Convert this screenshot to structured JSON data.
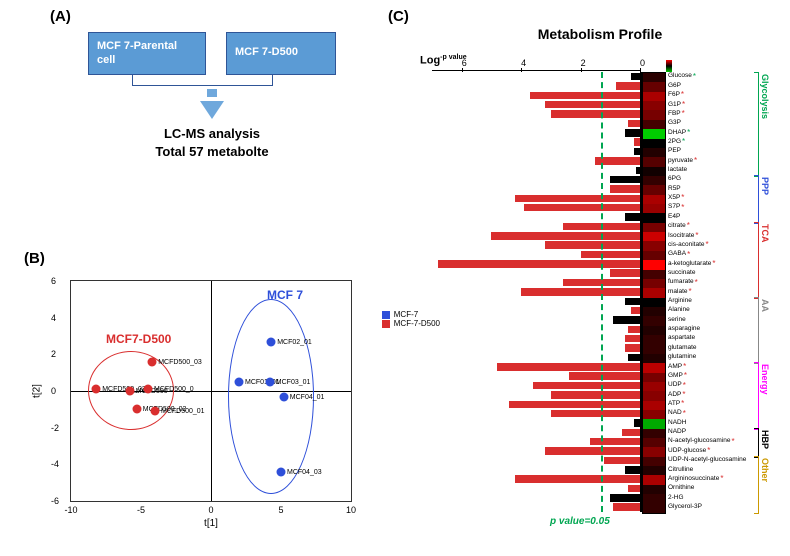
{
  "panelA": {
    "label": "(A)",
    "box1": "MCF 7-Parental\ncell",
    "box2": "MCF 7-D500",
    "caption1": "LC-MS analysis",
    "caption2": "Total 57 metabolte",
    "box_bg": "#5b9bd5",
    "box_border": "#2f5597",
    "arrow_color": "#6fa8dc"
  },
  "panelB": {
    "label": "(B)",
    "xlabel": "t[1]",
    "ylabel": "t[2]",
    "xlim": [
      -10,
      10
    ],
    "ylim": [
      -6,
      6
    ],
    "xticks": [
      -10,
      -5,
      0,
      5,
      10
    ],
    "yticks": [
      -6,
      -4,
      -2,
      0,
      2,
      4,
      6
    ],
    "group1": {
      "label": "MCF7-D500",
      "color": "#d92e2e"
    },
    "group2": {
      "label": "MCF 7",
      "color": "#2e4fd9"
    },
    "points_red": [
      {
        "x": -8.2,
        "y": 0.1,
        "label": "MCFD500_02"
      },
      {
        "x": -5.8,
        "y": 0.0,
        "label": "MCFD500"
      },
      {
        "x": -4.5,
        "y": 0.1,
        "label": "MCFD500_0"
      },
      {
        "x": -5.3,
        "y": -1.0,
        "label": "MCFD500_02"
      },
      {
        "x": -4.0,
        "y": -1.1,
        "label": "MCFD500_01"
      },
      {
        "x": -4.2,
        "y": 1.6,
        "label": "MCFD500_03"
      }
    ],
    "points_blue": [
      {
        "x": 2.0,
        "y": 0.5,
        "label": "MCF01_01"
      },
      {
        "x": 4.2,
        "y": 0.5,
        "label": "MCF03_01"
      },
      {
        "x": 4.3,
        "y": 2.7,
        "label": "MCF02_01"
      },
      {
        "x": 5.2,
        "y": -0.3,
        "label": "MCF04_01"
      },
      {
        "x": 5.0,
        "y": -4.4,
        "label": "MCF04_03"
      }
    ],
    "legend": [
      {
        "label": "MCF-7",
        "color": "#2e4fd9"
      },
      {
        "label": "MCF-7-D500",
        "color": "#d92e2e"
      }
    ]
  },
  "panelC": {
    "label": "(C)",
    "title": "Metabolism Profile",
    "xlabel": "Log",
    "xlabel_sup": "-p value",
    "xticks": [
      0,
      2,
      4,
      6
    ],
    "pval_threshold_x": 1.3,
    "pval_text": "p value=0.05",
    "pathways": [
      {
        "name": "Glycolysis",
        "color": "#00a651",
        "start": 0,
        "end": 11
      },
      {
        "name": "PPP",
        "color": "#2e4fd9",
        "start": 11,
        "end": 16
      },
      {
        "name": "TCA",
        "color": "#d92e2e",
        "start": 16,
        "end": 24
      },
      {
        "name": "AA",
        "color": "#888888",
        "start": 24,
        "end": 31
      },
      {
        "name": "Energy",
        "color": "#ff00ff",
        "start": 31,
        "end": 38
      },
      {
        "name": "HBP",
        "color": "#000000",
        "start": 38,
        "end": 41
      },
      {
        "name": "Other",
        "color": "#cc9900",
        "start": 41,
        "end": 47
      }
    ],
    "metabolites": [
      {
        "name": "Glucose",
        "log_p": 0.3,
        "heat": "#2a0000",
        "bar_color": "#000",
        "star": "g"
      },
      {
        "name": "G6P",
        "log_p": 0.8,
        "heat": "#660000",
        "bar_color": "#d92e2e",
        "star": ""
      },
      {
        "name": "F6P",
        "log_p": 3.7,
        "heat": "#aa0000",
        "bar_color": "#d92e2e",
        "star": "r"
      },
      {
        "name": "G1P",
        "log_p": 3.2,
        "heat": "#880000",
        "bar_color": "#d92e2e",
        "star": "r"
      },
      {
        "name": "FBP",
        "log_p": 3.0,
        "heat": "#770000",
        "bar_color": "#d92e2e",
        "star": "r"
      },
      {
        "name": "G3P",
        "log_p": 0.4,
        "heat": "#440000",
        "bar_color": "#d92e2e",
        "star": ""
      },
      {
        "name": "DHAP",
        "log_p": 0.5,
        "heat": "#00cc00",
        "bar_color": "#000",
        "star": "g"
      },
      {
        "name": "2PG",
        "log_p": 0.2,
        "heat": "#000000",
        "bar_color": "#d92e2e",
        "star": "g"
      },
      {
        "name": "PEP",
        "log_p": 0.2,
        "heat": "#220000",
        "bar_color": "#000",
        "star": ""
      },
      {
        "name": "pyruvate",
        "log_p": 1.5,
        "heat": "#550000",
        "bar_color": "#d92e2e",
        "star": "r"
      },
      {
        "name": "lactate",
        "log_p": 0.15,
        "heat": "#110000",
        "bar_color": "#000",
        "star": ""
      },
      {
        "name": "6PG",
        "log_p": 1.0,
        "heat": "#330000",
        "bar_color": "#000",
        "star": ""
      },
      {
        "name": "R5P",
        "log_p": 1.0,
        "heat": "#660000",
        "bar_color": "#d92e2e",
        "star": ""
      },
      {
        "name": "X5P",
        "log_p": 4.2,
        "heat": "#aa0000",
        "bar_color": "#d92e2e",
        "star": "r"
      },
      {
        "name": "S7P",
        "log_p": 3.9,
        "heat": "#990000",
        "bar_color": "#d92e2e",
        "star": "r"
      },
      {
        "name": "E4P",
        "log_p": 0.5,
        "heat": "#000000",
        "bar_color": "#000",
        "star": ""
      },
      {
        "name": "citrate",
        "log_p": 2.6,
        "heat": "#770000",
        "bar_color": "#d92e2e",
        "star": "r"
      },
      {
        "name": "Isocitrate",
        "log_p": 5.0,
        "heat": "#cc0000",
        "bar_color": "#d92e2e",
        "star": "r"
      },
      {
        "name": "cis-aconitate",
        "log_p": 3.2,
        "heat": "#880000",
        "bar_color": "#d92e2e",
        "star": "r"
      },
      {
        "name": "GABA",
        "log_p": 2.0,
        "heat": "#660000",
        "bar_color": "#d92e2e",
        "star": "r"
      },
      {
        "name": "a-ketoglutarate",
        "log_p": 6.8,
        "heat": "#ff0000",
        "bar_color": "#d92e2e",
        "star": "r"
      },
      {
        "name": "succinate",
        "log_p": 1.0,
        "heat": "#440000",
        "bar_color": "#d92e2e",
        "star": ""
      },
      {
        "name": "fumarate",
        "log_p": 2.6,
        "heat": "#770000",
        "bar_color": "#d92e2e",
        "star": "r"
      },
      {
        "name": "malate",
        "log_p": 4.0,
        "heat": "#aa0000",
        "bar_color": "#d92e2e",
        "star": "r"
      },
      {
        "name": "Arginine",
        "log_p": 0.5,
        "heat": "#000000",
        "bar_color": "#000",
        "star": ""
      },
      {
        "name": "Alanine",
        "log_p": 0.3,
        "heat": "#220000",
        "bar_color": "#d92e2e",
        "star": ""
      },
      {
        "name": "serine",
        "log_p": 0.9,
        "heat": "#330000",
        "bar_color": "#000",
        "star": ""
      },
      {
        "name": "asparagine",
        "log_p": 0.4,
        "heat": "#220000",
        "bar_color": "#d92e2e",
        "star": ""
      },
      {
        "name": "aspartate",
        "log_p": 0.5,
        "heat": "#330000",
        "bar_color": "#d92e2e",
        "star": ""
      },
      {
        "name": "glutamate",
        "log_p": 0.5,
        "heat": "#330000",
        "bar_color": "#d92e2e",
        "star": ""
      },
      {
        "name": "glutamine",
        "log_p": 0.4,
        "heat": "#220000",
        "bar_color": "#000",
        "star": ""
      },
      {
        "name": "AMP",
        "log_p": 4.8,
        "heat": "#bb0000",
        "bar_color": "#d92e2e",
        "star": "r"
      },
      {
        "name": "GMP",
        "log_p": 2.4,
        "heat": "#770000",
        "bar_color": "#d92e2e",
        "star": "r"
      },
      {
        "name": "UDP",
        "log_p": 3.6,
        "heat": "#990000",
        "bar_color": "#d92e2e",
        "star": "r"
      },
      {
        "name": "ADP",
        "log_p": 3.0,
        "heat": "#880000",
        "bar_color": "#d92e2e",
        "star": "r"
      },
      {
        "name": "ATP",
        "log_p": 4.4,
        "heat": "#aa0000",
        "bar_color": "#d92e2e",
        "star": "r"
      },
      {
        "name": "NAD",
        "log_p": 3.0,
        "heat": "#880000",
        "bar_color": "#d92e2e",
        "star": "r"
      },
      {
        "name": "NADH",
        "log_p": 0.2,
        "heat": "#00aa00",
        "bar_color": "#000",
        "star": ""
      },
      {
        "name": "NADP",
        "log_p": 0.6,
        "heat": "#330000",
        "bar_color": "#d92e2e",
        "star": ""
      },
      {
        "name": "N-acetyl-glucosamine",
        "log_p": 1.7,
        "heat": "#550000",
        "bar_color": "#d92e2e",
        "star": "r"
      },
      {
        "name": "UDP-glucose",
        "log_p": 3.2,
        "heat": "#880000",
        "bar_color": "#d92e2e",
        "star": "r"
      },
      {
        "name": "UDP-N-acetyl-glucosamine",
        "log_p": 1.2,
        "heat": "#440000",
        "bar_color": "#d92e2e",
        "star": ""
      },
      {
        "name": "Citrulline",
        "log_p": 0.5,
        "heat": "#220000",
        "bar_color": "#000",
        "star": ""
      },
      {
        "name": "Argininosuccinate",
        "log_p": 4.2,
        "heat": "#aa0000",
        "bar_color": "#d92e2e",
        "star": "r"
      },
      {
        "name": "Ornithine",
        "log_p": 0.4,
        "heat": "#220000",
        "bar_color": "#d92e2e",
        "star": ""
      },
      {
        "name": "2-HG",
        "log_p": 1.0,
        "heat": "#330000",
        "bar_color": "#000",
        "star": ""
      },
      {
        "name": "Glycerol-3P",
        "log_p": 0.9,
        "heat": "#330000",
        "bar_color": "#d92e2e",
        "star": ""
      }
    ]
  }
}
